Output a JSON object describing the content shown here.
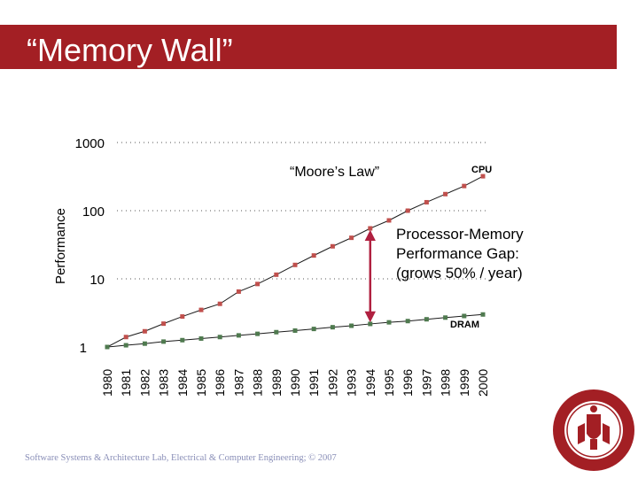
{
  "slide": {
    "title": "“Memory Wall”",
    "footer": "Software Systems & Architecture Lab, Electrical & Computer Engineering; © 2007",
    "title_bar_color": "#a31f24"
  },
  "seal": {
    "icon": "university-seal-icon",
    "text": "UNIVERSITY OF MASSACHUSETTS AMHERST"
  },
  "chart_data": {
    "type": "line",
    "ylabel": "Performance",
    "yscale": "log",
    "ylim": [
      1,
      1000
    ],
    "y_ticks": [
      "1",
      "10",
      "100",
      "1000"
    ],
    "x": [
      "1980",
      "1981",
      "1982",
      "1983",
      "1984",
      "1985",
      "1986",
      "1987",
      "1988",
      "1989",
      "1990",
      "1991",
      "1992",
      "1993",
      "1994",
      "1995",
      "1996",
      "1997",
      "1998",
      "1999",
      "2000"
    ],
    "series": [
      {
        "name": "CPU",
        "color": "#c0504d",
        "values": [
          1,
          1.4,
          1.7,
          2.2,
          2.8,
          3.5,
          4.3,
          6.5,
          8.4,
          11.5,
          16,
          22,
          30,
          40,
          55,
          72,
          100,
          133,
          175,
          230,
          320
        ]
      },
      {
        "name": "DRAM",
        "color": "#4f7a4f",
        "values": [
          1,
          1.06,
          1.12,
          1.2,
          1.26,
          1.33,
          1.4,
          1.48,
          1.56,
          1.65,
          1.74,
          1.84,
          1.95,
          2.05,
          2.18,
          2.3,
          2.4,
          2.55,
          2.7,
          2.85,
          3.0
        ]
      }
    ],
    "annotations": {
      "moore": "“Moore’s Law”",
      "gap": [
        "Processor-Memory",
        "Performance Gap:",
        "(grows 50% / year)"
      ]
    },
    "grid": "dotted horizontal"
  }
}
